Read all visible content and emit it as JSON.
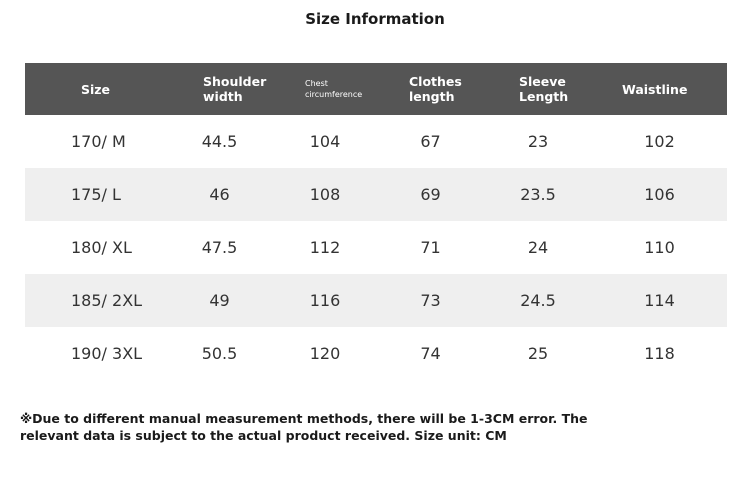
{
  "title": "Size Information",
  "headers": [
    {
      "label": "Size"
    },
    {
      "label": "Shoulder width"
    },
    {
      "label": "Chest circumference"
    },
    {
      "label": "Clothes length"
    },
    {
      "label": "Sleeve Length"
    },
    {
      "label": "Waistline"
    }
  ],
  "rows": [
    {
      "size": "170/ M",
      "shoulder": "44.5",
      "chest": "104",
      "length": "67",
      "sleeve": "23",
      "waist": "102"
    },
    {
      "size": "175/ L",
      "shoulder": "46",
      "chest": "108",
      "length": "69",
      "sleeve": "23.5",
      "waist": "106"
    },
    {
      "size": "180/ XL",
      "shoulder": "47.5",
      "chest": "112",
      "length": "71",
      "sleeve": "24",
      "waist": "110"
    },
    {
      "size": "185/ 2XL",
      "shoulder": "49",
      "chest": "116",
      "length": "73",
      "sleeve": "24.5",
      "waist": "114"
    },
    {
      "size": "190/ 3XL",
      "shoulder": "50.5",
      "chest": "120",
      "length": "74",
      "sleeve": "25",
      "waist": "118"
    }
  ],
  "note": "※Due to different manual measurement methods, there will be 1-3CM error. The relevant data is subject to the actual product received. Size unit: CM"
}
